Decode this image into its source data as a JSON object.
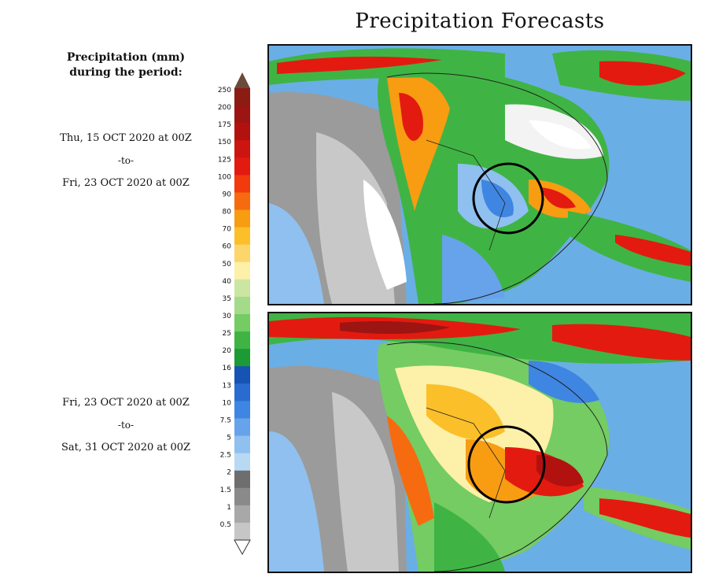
{
  "title": "Precipitation Forecasts",
  "legend": {
    "title_line1": "Precipitation (mm)",
    "title_line2": "during the period:",
    "levels": [
      {
        "label": "250",
        "color": "#8b1c13"
      },
      {
        "label": "200",
        "color": "#9c1512"
      },
      {
        "label": "175",
        "color": "#b2120f"
      },
      {
        "label": "150",
        "color": "#cc1510"
      },
      {
        "label": "125",
        "color": "#e31a10"
      },
      {
        "label": "100",
        "color": "#f23a0d"
      },
      {
        "label": "90",
        "color": "#f66b0f"
      },
      {
        "label": "80",
        "color": "#f89c12"
      },
      {
        "label": "70",
        "color": "#fbbf2a"
      },
      {
        "label": "60",
        "color": "#fcd66b"
      },
      {
        "label": "50",
        "color": "#fdf0a8"
      },
      {
        "label": "40",
        "color": "#cbe6a2"
      },
      {
        "label": "35",
        "color": "#a4db8b"
      },
      {
        "label": "30",
        "color": "#74cc63"
      },
      {
        "label": "25",
        "color": "#3fb444"
      },
      {
        "label": "20",
        "color": "#1c9a36"
      },
      {
        "label": "16",
        "color": "#1753b4"
      },
      {
        "label": "13",
        "color": "#2a6bd1"
      },
      {
        "label": "10",
        "color": "#3f86e2"
      },
      {
        "label": "7.5",
        "color": "#67a3ea"
      },
      {
        "label": "5",
        "color": "#8fc0ef"
      },
      {
        "label": "2.5",
        "color": "#b8d9f4"
      },
      {
        "label": "2",
        "color": "#6e6e6e"
      },
      {
        "label": "1.5",
        "color": "#8a8a8a"
      },
      {
        "label": "1",
        "color": "#a8a8a8"
      },
      {
        "label": "0.5",
        "color": "#c6c6c6"
      }
    ],
    "cap_top_color": "#6a4a3c",
    "cap_bottom_color": "#ffffff"
  },
  "periods": [
    {
      "start": "Thu, 15 OCT 2020 at 00Z",
      "sep": "-to-",
      "end": "Fri, 23 OCT 2020 at 00Z"
    },
    {
      "start": "Fri, 23 OCT 2020 at 00Z",
      "sep": "-to-",
      "end": "Sat, 31 OCT 2020 at 00Z"
    }
  ]
}
